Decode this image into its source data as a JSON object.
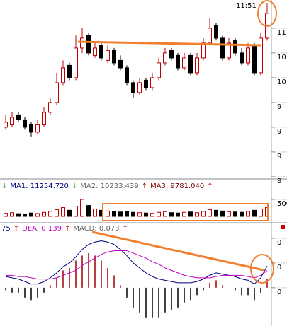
{
  "chart_data": [
    {
      "type": "candlestick",
      "high_label": {
        "value": 11.51,
        "label": "11:51"
      },
      "ylim": [
        7.97,
        11.57
      ],
      "yticks": [
        {
          "value": 11,
          "label": "11"
        },
        {
          "value": 10.5,
          "label": "10"
        },
        {
          "value": 10,
          "label": "10"
        },
        {
          "value": 9.5,
          "label": "9"
        },
        {
          "value": 9,
          "label": "9"
        },
        {
          "value": 8.5,
          "label": "9"
        },
        {
          "value": 8,
          "label": "8"
        }
      ],
      "up_color": "#c00000",
      "down_color": "#000000",
      "open": [
        9.0,
        9.05,
        9.25,
        9.15,
        9.05,
        8.9,
        9.05,
        9.3,
        9.5,
        9.9,
        10.25,
        10.0,
        10.6,
        10.85,
        10.45,
        10.65,
        10.35,
        10.55,
        10.35,
        10.2,
        9.9,
        9.7,
        9.95,
        9.8,
        10.0,
        10.3,
        10.55,
        10.45,
        10.2,
        10.45,
        10.1,
        10.4,
        10.7,
        11.05,
        10.8,
        10.4,
        10.75,
        10.5,
        10.3,
        10.65,
        10.1,
        10.8
      ],
      "high": [
        9.25,
        9.3,
        9.3,
        9.2,
        9.1,
        9.15,
        9.4,
        9.6,
        10.1,
        10.35,
        10.3,
        10.85,
        11.0,
        10.9,
        10.7,
        10.7,
        10.65,
        10.6,
        10.45,
        10.25,
        9.95,
        10.0,
        10.0,
        10.1,
        10.4,
        10.6,
        10.6,
        10.5,
        10.5,
        10.5,
        10.5,
        10.8,
        11.2,
        11.1,
        10.85,
        10.8,
        10.8,
        10.6,
        10.7,
        10.7,
        10.9,
        11.51
      ],
      "low": [
        8.95,
        9.0,
        9.1,
        8.95,
        8.8,
        8.85,
        9.0,
        9.25,
        9.45,
        9.85,
        9.95,
        9.95,
        10.5,
        10.45,
        10.4,
        10.35,
        10.3,
        10.25,
        10.15,
        9.85,
        9.6,
        9.65,
        9.75,
        9.75,
        9.95,
        10.25,
        10.35,
        10.15,
        10.15,
        10.05,
        10.05,
        10.35,
        10.65,
        10.75,
        10.35,
        10.35,
        10.45,
        10.25,
        10.25,
        10.05,
        10.05,
        10.75
      ],
      "close": [
        9.1,
        9.2,
        9.15,
        9.0,
        8.9,
        9.05,
        9.3,
        9.5,
        9.9,
        10.2,
        10.0,
        10.6,
        10.8,
        10.5,
        10.6,
        10.4,
        10.55,
        10.3,
        10.2,
        9.9,
        9.7,
        9.9,
        9.8,
        10.0,
        10.3,
        10.5,
        10.4,
        10.2,
        10.4,
        10.1,
        10.4,
        10.7,
        11.0,
        10.8,
        10.4,
        10.7,
        10.5,
        10.3,
        10.6,
        10.1,
        10.8,
        11.3
      ]
    },
    {
      "type": "bar",
      "header": [
        {
          "text": "↓",
          "color": "#008000"
        },
        {
          "text": "MA1: 11254.720",
          "color": "#000080"
        },
        {
          "text": "↓",
          "color": "#008000"
        },
        {
          "text": "MA2: 10233.439",
          "color": "#666666"
        },
        {
          "text": "↑",
          "color": "#c00000"
        },
        {
          "text": "MA3: 9781.040",
          "color": "#800000"
        },
        {
          "text": "↑",
          "color": "#c00000"
        }
      ],
      "ylim": [
        0,
        750
      ],
      "yticks": [
        500
      ],
      "values": [
        90,
        110,
        80,
        70,
        100,
        85,
        120,
        150,
        200,
        260,
        180,
        300,
        500,
        320,
        220,
        180,
        160,
        140,
        130,
        150,
        120,
        110,
        100,
        90,
        120,
        140,
        110,
        100,
        120,
        130,
        110,
        150,
        200,
        180,
        160,
        140,
        130,
        120,
        150,
        180,
        220,
        260
      ]
    },
    {
      "type": "macd",
      "header": [
        {
          "text": "75",
          "color": "#000080"
        },
        {
          "text": "↑",
          "color": "#c00000"
        },
        {
          "text": "DEA: 0.139",
          "color": "#c000c0"
        },
        {
          "text": "↑",
          "color": "#c00000"
        },
        {
          "text": "MACD: 0.073",
          "color": "#666666"
        },
        {
          "text": "↑",
          "color": "#c00000"
        }
      ],
      "ylim": [
        -0.31,
        0.44
      ],
      "yticks": [
        {
          "value": 0.4,
          "label": "0"
        },
        {
          "value": 0.2,
          "label": "0"
        },
        0
      ],
      "series": [
        {
          "color": "#000080",
          "values": [
            0.09,
            0.08,
            0.07,
            0.05,
            0.03,
            0.03,
            0.05,
            0.08,
            0.12,
            0.17,
            0.2,
            0.25,
            0.31,
            0.35,
            0.37,
            0.38,
            0.37,
            0.35,
            0.31,
            0.26,
            0.2,
            0.16,
            0.12,
            0.09,
            0.07,
            0.06,
            0.05,
            0.04,
            0.04,
            0.04,
            0.05,
            0.07,
            0.1,
            0.12,
            0.11,
            0.1,
            0.09,
            0.07,
            0.06,
            0.03,
            0.08,
            0.175
          ]
        },
        {
          "color": "#c000c0",
          "values": [
            0.1,
            0.1,
            0.09,
            0.09,
            0.08,
            0.07,
            0.07,
            0.07,
            0.08,
            0.1,
            0.12,
            0.14,
            0.18,
            0.21,
            0.24,
            0.27,
            0.29,
            0.3,
            0.3,
            0.3,
            0.28,
            0.26,
            0.24,
            0.21,
            0.19,
            0.16,
            0.14,
            0.12,
            0.1,
            0.09,
            0.08,
            0.08,
            0.08,
            0.09,
            0.1,
            0.1,
            0.1,
            0.1,
            0.09,
            0.08,
            0.1,
            0.139
          ]
        }
      ],
      "histogram": [
        -0.02,
        -0.04,
        -0.04,
        -0.08,
        -0.1,
        -0.08,
        -0.04,
        0.02,
        0.08,
        0.14,
        0.16,
        0.22,
        0.26,
        0.28,
        0.26,
        0.22,
        0.16,
        0.1,
        0.02,
        -0.08,
        -0.16,
        -0.2,
        -0.24,
        -0.24,
        -0.24,
        -0.2,
        -0.18,
        -0.16,
        -0.12,
        -0.1,
        -0.06,
        -0.02,
        0.04,
        0.06,
        0.02,
        0,
        -0.02,
        -0.06,
        -0.06,
        -0.1,
        -0.04,
        0.073
      ],
      "up_color": "#a00000",
      "down_color": "#000000"
    }
  ]
}
